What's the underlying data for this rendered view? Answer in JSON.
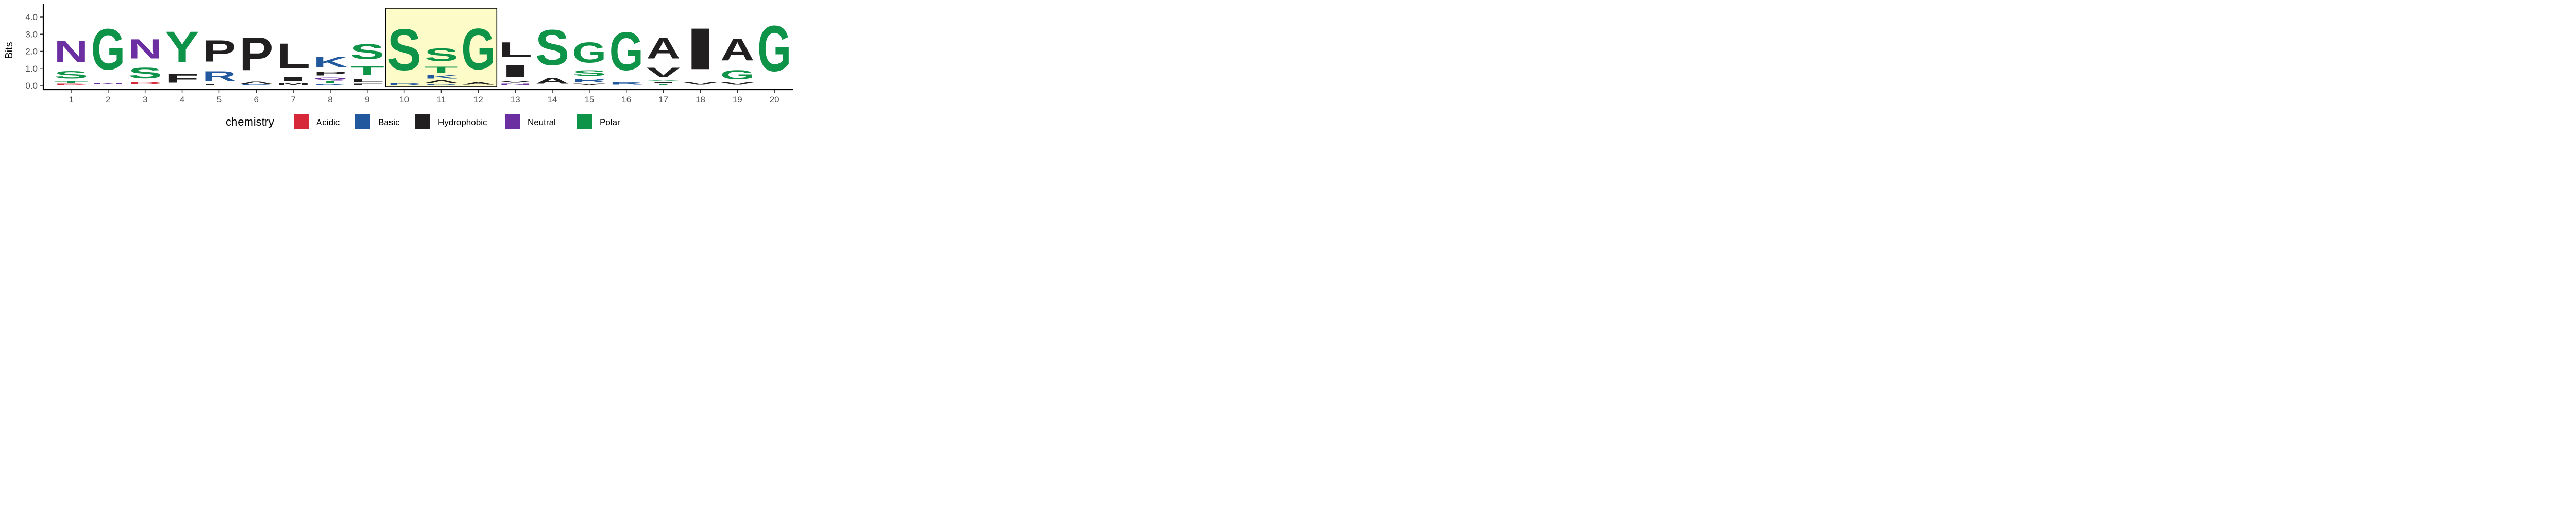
{
  "chart_data": {
    "type": "sequence-logo",
    "ylabel": "Bits",
    "ylim": [
      0,
      4.32
    ],
    "yticks": [
      0.0,
      1.0,
      2.0,
      3.0,
      4.0
    ],
    "y_tick_labels": [
      "0.0",
      "1.0",
      "2.0",
      "3.0",
      "4.0"
    ],
    "x_tick_labels": [
      "1",
      "2",
      "3",
      "4",
      "5",
      "6",
      "7",
      "8",
      "9",
      "10",
      "11",
      "12",
      "13",
      "14",
      "15",
      "16",
      "17",
      "18",
      "19",
      "20"
    ],
    "highlight_positions": [
      10,
      12
    ],
    "highlight_color": "#fdfcc9",
    "legend": {
      "title": "chemistry",
      "items": [
        {
          "label": "Acidic",
          "color": "#d62839"
        },
        {
          "label": "Basic",
          "color": "#22599e"
        },
        {
          "label": "Hydrophobic",
          "color": "#221f20"
        },
        {
          "label": "Neutral",
          "color": "#6b2fa2"
        },
        {
          "label": "Polar",
          "color": "#0e9448"
        }
      ]
    },
    "positions": [
      {
        "position": 1,
        "stack": [
          {
            "letter": "D",
            "chemistry": "Acidic",
            "height": 0.12
          },
          {
            "letter": "T",
            "chemistry": "Polar",
            "height": 0.15
          },
          {
            "letter": "S",
            "chemistry": "Polar",
            "height": 0.72
          },
          {
            "letter": "N",
            "chemistry": "Neutral",
            "height": 2.0
          }
        ]
      },
      {
        "position": 2,
        "stack": [
          {
            "letter": "D",
            "chemistry": "Acidic",
            "height": 0.03
          },
          {
            "letter": "N",
            "chemistry": "Neutral",
            "height": 0.15
          },
          {
            "letter": "G",
            "chemistry": "Polar",
            "height": 3.8
          }
        ]
      },
      {
        "position": 3,
        "stack": [
          {
            "letter": "K",
            "chemistry": "Basic",
            "height": 0.04
          },
          {
            "letter": "D",
            "chemistry": "Acidic",
            "height": 0.18
          },
          {
            "letter": "S",
            "chemistry": "Polar",
            "height": 1.0
          },
          {
            "letter": "N",
            "chemistry": "Neutral",
            "height": 1.8
          }
        ]
      },
      {
        "position": 4,
        "stack": [
          {
            "letter": "F",
            "chemistry": "Hydrophobic",
            "height": 0.82
          },
          {
            "letter": "Y",
            "chemistry": "Polar",
            "height": 2.85
          }
        ]
      },
      {
        "position": 5,
        "stack": [
          {
            "letter": "L",
            "chemistry": "Hydrophobic",
            "height": 0.1
          },
          {
            "letter": "R",
            "chemistry": "Basic",
            "height": 0.9
          },
          {
            "letter": "P",
            "chemistry": "Hydrophobic",
            "height": 2.0
          }
        ]
      },
      {
        "position": 6,
        "stack": [
          {
            "letter": "R",
            "chemistry": "Basic",
            "height": 0.05
          },
          {
            "letter": "A",
            "chemistry": "Hydrophobic",
            "height": 0.23
          },
          {
            "letter": "P",
            "chemistry": "Hydrophobic",
            "height": 3.1
          }
        ]
      },
      {
        "position": 7,
        "stack": [
          {
            "letter": "M",
            "chemistry": "Hydrophobic",
            "height": 0.17
          },
          {
            "letter": "I",
            "chemistry": "Hydrophobic",
            "height": 0.4
          },
          {
            "letter": "L",
            "chemistry": "Hydrophobic",
            "height": 2.3
          }
        ]
      },
      {
        "position": 8,
        "stack": [
          {
            "letter": "R",
            "chemistry": "Basic",
            "height": 0.11
          },
          {
            "letter": "T",
            "chemistry": "Polar",
            "height": 0.18
          },
          {
            "letter": "Q",
            "chemistry": "Neutral",
            "height": 0.23
          },
          {
            "letter": "P",
            "chemistry": "Hydrophobic",
            "height": 0.37
          },
          {
            "letter": "K",
            "chemistry": "Basic",
            "height": 0.95
          }
        ]
      },
      {
        "position": 9,
        "stack": [
          {
            "letter": "F",
            "chemistry": "Hydrophobic",
            "height": 0.13
          },
          {
            "letter": "L",
            "chemistry": "Hydrophobic",
            "height": 0.3
          },
          {
            "letter": "T",
            "chemistry": "Polar",
            "height": 0.85
          },
          {
            "letter": "S",
            "chemistry": "Polar",
            "height": 1.4
          }
        ]
      },
      {
        "position": 10,
        "stack": [
          {
            "letter": "R",
            "chemistry": "Basic",
            "height": 0.15
          },
          {
            "letter": "S",
            "chemistry": "Polar",
            "height": 3.85
          }
        ]
      },
      {
        "position": 11,
        "stack": [
          {
            "letter": "R",
            "chemistry": "Basic",
            "height": 0.1
          },
          {
            "letter": "A",
            "chemistry": "Hydrophobic",
            "height": 0.25
          },
          {
            "letter": "K",
            "chemistry": "Basic",
            "height": 0.3
          },
          {
            "letter": "T",
            "chemistry": "Polar",
            "height": 0.55
          },
          {
            "letter": "S",
            "chemistry": "Polar",
            "height": 1.2
          }
        ]
      },
      {
        "position": 12,
        "stack": [
          {
            "letter": "A",
            "chemistry": "Hydrophobic",
            "height": 0.2
          },
          {
            "letter": "G",
            "chemistry": "Polar",
            "height": 3.8
          }
        ]
      },
      {
        "position": 13,
        "stack": [
          {
            "letter": "N",
            "chemistry": "Neutral",
            "height": 0.13
          },
          {
            "letter": "V",
            "chemistry": "Hydrophobic",
            "height": 0.15
          },
          {
            "letter": "I",
            "chemistry": "Hydrophobic",
            "height": 1.1
          },
          {
            "letter": "L",
            "chemistry": "Hydrophobic",
            "height": 1.4
          }
        ]
      },
      {
        "position": 14,
        "stack": [
          {
            "letter": "A",
            "chemistry": "Hydrophobic",
            "height": 0.55
          },
          {
            "letter": "S",
            "chemistry": "Polar",
            "height": 3.3
          }
        ]
      },
      {
        "position": 15,
        "stack": [
          {
            "letter": "V",
            "chemistry": "Hydrophobic",
            "height": 0.13
          },
          {
            "letter": "R",
            "chemistry": "Basic",
            "height": 0.32
          },
          {
            "letter": "S",
            "chemistry": "Polar",
            "height": 0.52
          },
          {
            "letter": "G",
            "chemistry": "Polar",
            "height": 1.9
          }
        ]
      },
      {
        "position": 16,
        "stack": [
          {
            "letter": "R",
            "chemistry": "Basic",
            "height": 0.2
          },
          {
            "letter": "G",
            "chemistry": "Polar",
            "height": 3.55
          }
        ]
      },
      {
        "position": 17,
        "stack": [
          {
            "letter": "T",
            "chemistry": "Polar",
            "height": 0.1
          },
          {
            "letter": "I",
            "chemistry": "Hydrophobic",
            "height": 0.12
          },
          {
            "letter": "Y",
            "chemistry": "Polar",
            "height": 0.1
          },
          {
            "letter": "V",
            "chemistry": "Hydrophobic",
            "height": 0.88
          },
          {
            "letter": "A",
            "chemistry": "Hydrophobic",
            "height": 1.95
          }
        ]
      },
      {
        "position": 18,
        "stack": [
          {
            "letter": "V",
            "chemistry": "Hydrophobic",
            "height": 0.2
          },
          {
            "letter": "I",
            "chemistry": "Hydrophobic",
            "height": 3.85
          }
        ]
      },
      {
        "position": 19,
        "stack": [
          {
            "letter": "V",
            "chemistry": "Hydrophobic",
            "height": 0.2
          },
          {
            "letter": "G",
            "chemistry": "Polar",
            "height": 0.85
          },
          {
            "letter": "A",
            "chemistry": "Hydrophobic",
            "height": 2.05
          }
        ]
      },
      {
        "position": 20,
        "stack": [
          {
            "letter": "G",
            "chemistry": "Polar",
            "height": 4.25
          }
        ]
      }
    ]
  }
}
